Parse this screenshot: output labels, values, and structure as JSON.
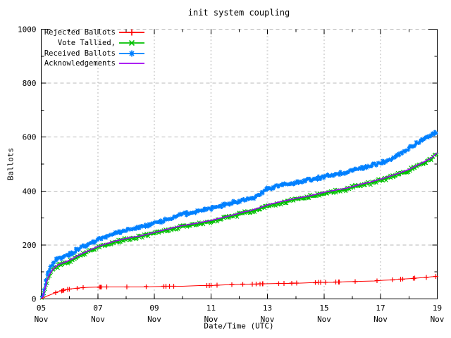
{
  "title": "init system coupling",
  "axes": {
    "xlabel": "Date/Time (UTC)",
    "ylabel": "Ballots",
    "ylim": [
      0,
      1000
    ],
    "xlim": [
      5,
      19
    ],
    "grid": true,
    "grid_color": "#b8b8b8",
    "border_color": "#000000",
    "y_ticks": [
      {
        "value": 0,
        "label": "0"
      },
      {
        "value": 200,
        "label": "200"
      },
      {
        "value": 400,
        "label": "400"
      },
      {
        "value": 600,
        "label": "600"
      },
      {
        "value": 800,
        "label": "800"
      },
      {
        "value": 1000,
        "label": "1000"
      }
    ],
    "y_minor_ticks": [
      100,
      300,
      500,
      700,
      900
    ],
    "x_ticks": [
      {
        "value": 5,
        "label": "05",
        "sub": "Nov"
      },
      {
        "value": 6
      },
      {
        "value": 7,
        "label": "07",
        "sub": "Nov"
      },
      {
        "value": 8
      },
      {
        "value": 9,
        "label": "09",
        "sub": "Nov"
      },
      {
        "value": 10
      },
      {
        "value": 11,
        "label": "11",
        "sub": "Nov"
      },
      {
        "value": 12
      },
      {
        "value": 13,
        "label": "13",
        "sub": "Nov"
      },
      {
        "value": 14
      },
      {
        "value": 15,
        "label": "15",
        "sub": "Nov"
      },
      {
        "value": 16
      },
      {
        "value": 17,
        "label": "17",
        "sub": "Nov"
      },
      {
        "value": 18
      },
      {
        "value": 19,
        "label": "19",
        "sub": "Nov"
      }
    ],
    "grid_x_values": [
      7,
      9,
      11,
      13,
      15,
      17
    ],
    "grid_y_values": [
      200,
      400,
      600,
      800,
      1000
    ]
  },
  "legend": {
    "position": "top-left"
  },
  "chart_data": {
    "type": "line",
    "title": "init system coupling",
    "xlabel": "Date/Time (UTC)",
    "ylabel": "Ballots",
    "x_unit": "November date (UTC)",
    "xlim": [
      5,
      19
    ],
    "ylim": [
      0,
      1000
    ],
    "series": [
      {
        "name": "Rejected Ballots",
        "color": "#ff0000",
        "marker": "plus",
        "points": [
          [
            5.0,
            0
          ],
          [
            5.1,
            5
          ],
          [
            5.2,
            10
          ],
          [
            5.3,
            15
          ],
          [
            5.45,
            21
          ],
          [
            5.6,
            27
          ],
          [
            5.8,
            32
          ],
          [
            6.0,
            36
          ],
          [
            6.2,
            39
          ],
          [
            6.45,
            42
          ],
          [
            6.7,
            43
          ],
          [
            7.2,
            44
          ],
          [
            8.0,
            44
          ],
          [
            8.6,
            45
          ],
          [
            9.0,
            46
          ],
          [
            9.6,
            47
          ],
          [
            10.0,
            47
          ],
          [
            10.6,
            49
          ],
          [
            11.0,
            50
          ],
          [
            11.5,
            52
          ],
          [
            12.0,
            54
          ],
          [
            12.4,
            55
          ],
          [
            12.9,
            56
          ],
          [
            13.4,
            57
          ],
          [
            13.8,
            58
          ],
          [
            14.2,
            59
          ],
          [
            14.8,
            61
          ],
          [
            15.3,
            62
          ],
          [
            15.8,
            64
          ],
          [
            16.3,
            65
          ],
          [
            16.8,
            67
          ],
          [
            17.1,
            69
          ],
          [
            17.4,
            71
          ],
          [
            17.6,
            73
          ],
          [
            17.9,
            74
          ],
          [
            18.1,
            76
          ],
          [
            18.4,
            78
          ],
          [
            18.6,
            80
          ],
          [
            18.8,
            82
          ],
          [
            19.0,
            84
          ]
        ]
      },
      {
        "name": "Vote Tallied,",
        "color": "#00c000",
        "marker": "cross",
        "points": [
          [
            5.0,
            0
          ],
          [
            5.05,
            6
          ],
          [
            5.1,
            22
          ],
          [
            5.15,
            42
          ],
          [
            5.2,
            62
          ],
          [
            5.3,
            88
          ],
          [
            5.4,
            104
          ],
          [
            5.5,
            115
          ],
          [
            5.6,
            122
          ],
          [
            5.75,
            129
          ],
          [
            5.9,
            135
          ],
          [
            6.0,
            139
          ],
          [
            6.15,
            147
          ],
          [
            6.3,
            157
          ],
          [
            6.45,
            165
          ],
          [
            6.6,
            171
          ],
          [
            6.8,
            181
          ],
          [
            7.0,
            191
          ],
          [
            7.3,
            201
          ],
          [
            7.6,
            210
          ],
          [
            8.0,
            220
          ],
          [
            8.2,
            224
          ],
          [
            8.5,
            230
          ],
          [
            8.8,
            238
          ],
          [
            9.0,
            243
          ],
          [
            9.2,
            248
          ],
          [
            9.5,
            256
          ],
          [
            9.9,
            266
          ],
          [
            10.2,
            271
          ],
          [
            10.5,
            277
          ],
          [
            10.8,
            283
          ],
          [
            11.0,
            287
          ],
          [
            11.3,
            295
          ],
          [
            11.6,
            303
          ],
          [
            11.9,
            311
          ],
          [
            12.1,
            317
          ],
          [
            12.4,
            324
          ],
          [
            12.6,
            330
          ],
          [
            12.75,
            335
          ],
          [
            12.9,
            340
          ],
          [
            13.0,
            344
          ],
          [
            13.2,
            350
          ],
          [
            13.5,
            357
          ],
          [
            13.8,
            364
          ],
          [
            14.0,
            369
          ],
          [
            14.3,
            375
          ],
          [
            14.6,
            381
          ],
          [
            15.0,
            391
          ],
          [
            15.4,
            399
          ],
          [
            15.7,
            404
          ],
          [
            16.0,
            413
          ],
          [
            16.3,
            421
          ],
          [
            16.6,
            428
          ],
          [
            16.8,
            434
          ],
          [
            17.0,
            440
          ],
          [
            17.2,
            447
          ],
          [
            17.4,
            454
          ],
          [
            17.6,
            461
          ],
          [
            17.8,
            469
          ],
          [
            18.0,
            477
          ],
          [
            18.2,
            487
          ],
          [
            18.5,
            503
          ],
          [
            18.8,
            522
          ],
          [
            19.0,
            540
          ]
        ]
      },
      {
        "name": "Received Ballots",
        "color": "#0080ff",
        "marker": "star",
        "points": [
          [
            5.0,
            0
          ],
          [
            5.05,
            12
          ],
          [
            5.1,
            35
          ],
          [
            5.15,
            60
          ],
          [
            5.2,
            85
          ],
          [
            5.3,
            112
          ],
          [
            5.4,
            128
          ],
          [
            5.5,
            140
          ],
          [
            5.6,
            148
          ],
          [
            5.75,
            155
          ],
          [
            5.9,
            161
          ],
          [
            6.0,
            166
          ],
          [
            6.15,
            173
          ],
          [
            6.3,
            185
          ],
          [
            6.45,
            192
          ],
          [
            6.6,
            196
          ],
          [
            6.8,
            207
          ],
          [
            7.0,
            220
          ],
          [
            7.3,
            231
          ],
          [
            7.6,
            241
          ],
          [
            8.0,
            254
          ],
          [
            8.2,
            258
          ],
          [
            8.5,
            265
          ],
          [
            8.8,
            274
          ],
          [
            9.0,
            281
          ],
          [
            9.2,
            287
          ],
          [
            9.5,
            296
          ],
          [
            9.9,
            313
          ],
          [
            10.2,
            317
          ],
          [
            10.5,
            325
          ],
          [
            10.8,
            331
          ],
          [
            11.0,
            335
          ],
          [
            11.3,
            343
          ],
          [
            11.6,
            351
          ],
          [
            11.9,
            360
          ],
          [
            12.1,
            366
          ],
          [
            12.4,
            371
          ],
          [
            12.6,
            378
          ],
          [
            12.75,
            390
          ],
          [
            12.9,
            403
          ],
          [
            13.0,
            409
          ],
          [
            13.2,
            414
          ],
          [
            13.5,
            421
          ],
          [
            13.8,
            428
          ],
          [
            14.0,
            432
          ],
          [
            14.3,
            438
          ],
          [
            14.6,
            444
          ],
          [
            15.0,
            454
          ],
          [
            15.4,
            462
          ],
          [
            15.7,
            467
          ],
          [
            16.0,
            477
          ],
          [
            16.3,
            485
          ],
          [
            16.6,
            491
          ],
          [
            16.8,
            497
          ],
          [
            17.0,
            505
          ],
          [
            17.2,
            512
          ],
          [
            17.4,
            520
          ],
          [
            17.6,
            532
          ],
          [
            17.8,
            545
          ],
          [
            18.0,
            558
          ],
          [
            18.2,
            572
          ],
          [
            18.5,
            590
          ],
          [
            18.8,
            607
          ],
          [
            19.0,
            620
          ]
        ]
      },
      {
        "name": "Acknowledgements",
        "color": "#a000f0",
        "marker": "none",
        "points": [
          [
            5.0,
            0
          ],
          [
            5.05,
            8
          ],
          [
            5.1,
            25
          ],
          [
            5.15,
            45
          ],
          [
            5.2,
            66
          ],
          [
            5.3,
            92
          ],
          [
            5.4,
            108
          ],
          [
            5.5,
            119
          ],
          [
            5.6,
            126
          ],
          [
            5.75,
            133
          ],
          [
            5.9,
            139
          ],
          [
            6.0,
            143
          ],
          [
            6.15,
            151
          ],
          [
            6.3,
            161
          ],
          [
            6.45,
            169
          ],
          [
            6.6,
            175
          ],
          [
            6.8,
            185
          ],
          [
            7.0,
            195
          ],
          [
            7.3,
            205
          ],
          [
            7.6,
            214
          ],
          [
            8.0,
            224
          ],
          [
            8.2,
            228
          ],
          [
            8.5,
            234
          ],
          [
            8.8,
            242
          ],
          [
            9.0,
            247
          ],
          [
            9.2,
            252
          ],
          [
            9.5,
            260
          ],
          [
            9.9,
            270
          ],
          [
            10.2,
            275
          ],
          [
            10.5,
            281
          ],
          [
            10.8,
            287
          ],
          [
            11.0,
            291
          ],
          [
            11.3,
            299
          ],
          [
            11.6,
            307
          ],
          [
            11.9,
            315
          ],
          [
            12.1,
            321
          ],
          [
            12.4,
            328
          ],
          [
            12.6,
            334
          ],
          [
            12.75,
            339
          ],
          [
            12.9,
            344
          ],
          [
            13.0,
            348
          ],
          [
            13.2,
            354
          ],
          [
            13.5,
            361
          ],
          [
            13.8,
            368
          ],
          [
            14.0,
            373
          ],
          [
            14.3,
            379
          ],
          [
            14.6,
            385
          ],
          [
            15.0,
            395
          ],
          [
            15.4,
            403
          ],
          [
            15.7,
            408
          ],
          [
            16.0,
            417
          ],
          [
            16.3,
            425
          ],
          [
            16.6,
            432
          ],
          [
            16.8,
            438
          ],
          [
            17.0,
            444
          ],
          [
            17.2,
            451
          ],
          [
            17.4,
            458
          ],
          [
            17.6,
            465
          ],
          [
            17.8,
            473
          ],
          [
            18.0,
            481
          ],
          [
            18.2,
            491
          ],
          [
            18.5,
            506
          ],
          [
            18.8,
            524
          ],
          [
            19.0,
            542
          ]
        ]
      }
    ]
  }
}
